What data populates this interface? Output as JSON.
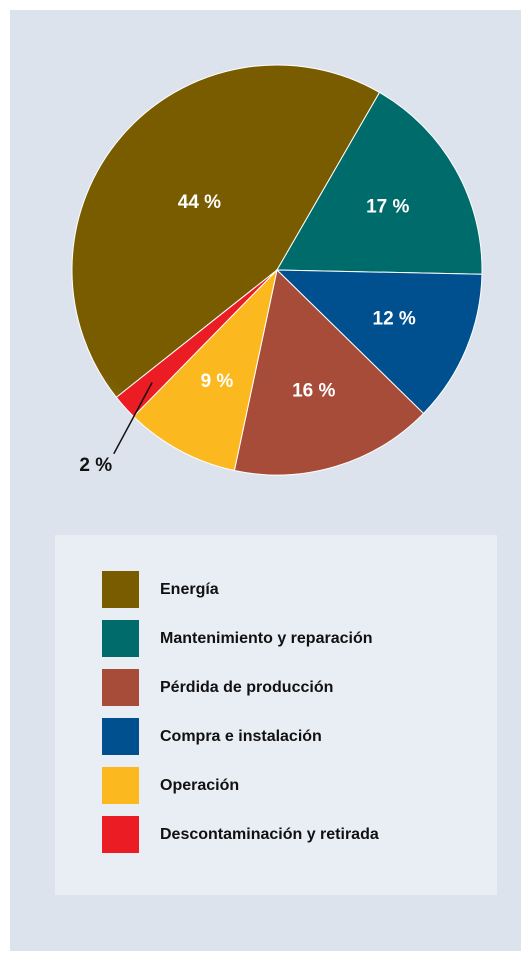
{
  "chart_data": {
    "type": "pie",
    "values": [
      44,
      17,
      12,
      16,
      9,
      2
    ],
    "value_labels": [
      "44 %",
      "17 %",
      "12 %",
      "16 %",
      "9 %",
      "2 %"
    ],
    "colors": [
      "#7a5c00",
      "#006b6b",
      "#00508f",
      "#a84c3a",
      "#fbb81f",
      "#ec1c24"
    ],
    "legend": [
      {
        "name": "Energía",
        "color": "#7a5c00"
      },
      {
        "name": "Mantenimiento y reparación",
        "color": "#006b6b"
      },
      {
        "name": "Pérdida de producción",
        "color": "#a84c3a"
      },
      {
        "name": "Compra e instalación",
        "color": "#00508f"
      },
      {
        "name": "Operación",
        "color": "#fbb81f"
      },
      {
        "name": "Descontaminación y retirada",
        "color": "#ec1c24"
      }
    ]
  }
}
